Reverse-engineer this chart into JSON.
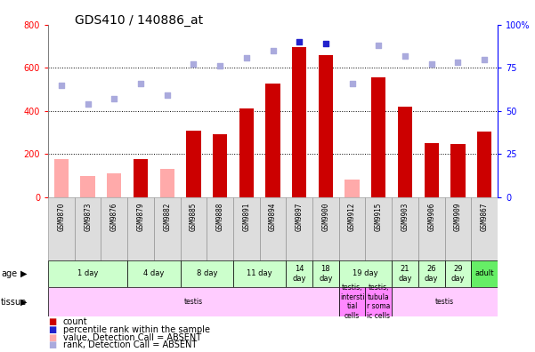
{
  "title": "GDS410 / 140886_at",
  "samples": [
    "GSM9870",
    "GSM9873",
    "GSM9876",
    "GSM9879",
    "GSM9882",
    "GSM9885",
    "GSM9888",
    "GSM9891",
    "GSM9894",
    "GSM9897",
    "GSM9900",
    "GSM9912",
    "GSM9915",
    "GSM9903",
    "GSM9906",
    "GSM9909",
    "GSM9867"
  ],
  "count_values": [
    0,
    0,
    0,
    175,
    0,
    310,
    290,
    410,
    525,
    695,
    660,
    0,
    555,
    420,
    250,
    245,
    305
  ],
  "count_absent": [
    175,
    100,
    110,
    0,
    130,
    0,
    0,
    0,
    0,
    0,
    0,
    80,
    0,
    0,
    0,
    0,
    0
  ],
  "percentile_values_pct": [
    0,
    0,
    0,
    0,
    0,
    0,
    0,
    0,
    0,
    90,
    89,
    0,
    0,
    0,
    0,
    0,
    0
  ],
  "percentile_absent_pct": [
    65,
    54,
    57,
    66,
    59,
    77,
    76,
    81,
    85,
    0,
    0,
    66,
    88,
    82,
    77,
    78,
    80
  ],
  "ylim_left": [
    0,
    800
  ],
  "ylim_right": [
    0,
    100
  ],
  "yticks_left": [
    0,
    200,
    400,
    600,
    800
  ],
  "yticks_right": [
    0,
    25,
    50,
    75,
    100
  ],
  "age_groups": [
    {
      "label": "1 day",
      "start": 0,
      "end": 3,
      "color": "#ccffcc"
    },
    {
      "label": "4 day",
      "start": 3,
      "end": 5,
      "color": "#ccffcc"
    },
    {
      "label": "8 day",
      "start": 5,
      "end": 7,
      "color": "#ccffcc"
    },
    {
      "label": "11 day",
      "start": 7,
      "end": 9,
      "color": "#ccffcc"
    },
    {
      "label": "14\nday",
      "start": 9,
      "end": 10,
      "color": "#ccffcc"
    },
    {
      "label": "18\nday",
      "start": 10,
      "end": 11,
      "color": "#ccffcc"
    },
    {
      "label": "19 day",
      "start": 11,
      "end": 13,
      "color": "#ccffcc"
    },
    {
      "label": "21\nday",
      "start": 13,
      "end": 14,
      "color": "#ccffcc"
    },
    {
      "label": "26\nday",
      "start": 14,
      "end": 15,
      "color": "#ccffcc"
    },
    {
      "label": "29\nday",
      "start": 15,
      "end": 16,
      "color": "#ccffcc"
    },
    {
      "label": "adult",
      "start": 16,
      "end": 17,
      "color": "#66ee66"
    }
  ],
  "tissue_groups": [
    {
      "label": "testis",
      "start": 0,
      "end": 11,
      "color": "#ffccff"
    },
    {
      "label": "testis,\nintersti\ntial\ncells",
      "start": 11,
      "end": 12,
      "color": "#ff88ff"
    },
    {
      "label": "testis,\ntubula\nr soma\nic cells",
      "start": 12,
      "end": 13,
      "color": "#ff88ff"
    },
    {
      "label": "testis",
      "start": 13,
      "end": 17,
      "color": "#ffccff"
    }
  ],
  "bar_color_red": "#cc0000",
  "bar_color_pink": "#ffaaaa",
  "dot_color_blue": "#2222cc",
  "dot_color_lightblue": "#aaaadd",
  "bg_color": "#ffffff"
}
